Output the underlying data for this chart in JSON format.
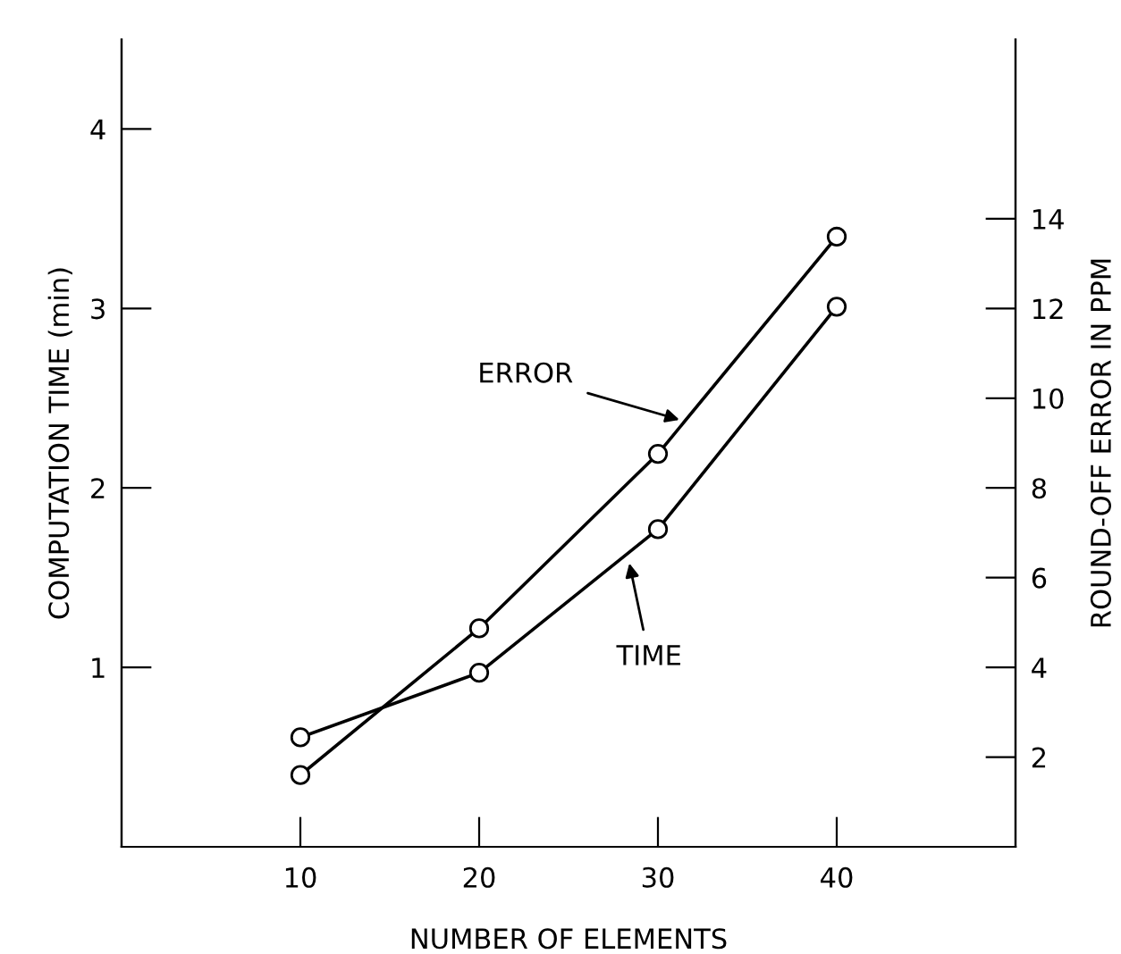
{
  "chart_data": {
    "type": "line",
    "xlabel": "NUMBER OF ELEMENTS",
    "ylabel": "COMPUTATION TIME (min)",
    "y2label": "ROUND-OFF ERROR IN PPM",
    "x": [
      10,
      20,
      30,
      40
    ],
    "series": [
      {
        "color": "#000000",
        "values": [
          0.61,
          0.97,
          1.77,
          3.01
        ]
      },
      {
        "color": "#000000",
        "axis": "y2",
        "values": [
          1.6,
          4.87,
          8.76,
          13.6
        ]
      }
    ],
    "xlim": [
      0,
      50
    ],
    "xticks": [
      10,
      20,
      30,
      40
    ],
    "ylim": [
      0,
      4.5
    ],
    "yticks": [
      1,
      2,
      3,
      4
    ],
    "y2lim": [
      0,
      18
    ],
    "y2ticks": [
      2,
      4,
      6,
      8,
      10,
      12,
      14
    ],
    "marker": "circle",
    "line_style": "solid",
    "grid": false,
    "legend": false,
    "annotations": [
      {
        "text": "ERROR",
        "x": 31.2,
        "y": 2.38
      },
      {
        "text": "TIME",
        "x": 28.4,
        "y": 1.58
      }
    ]
  }
}
